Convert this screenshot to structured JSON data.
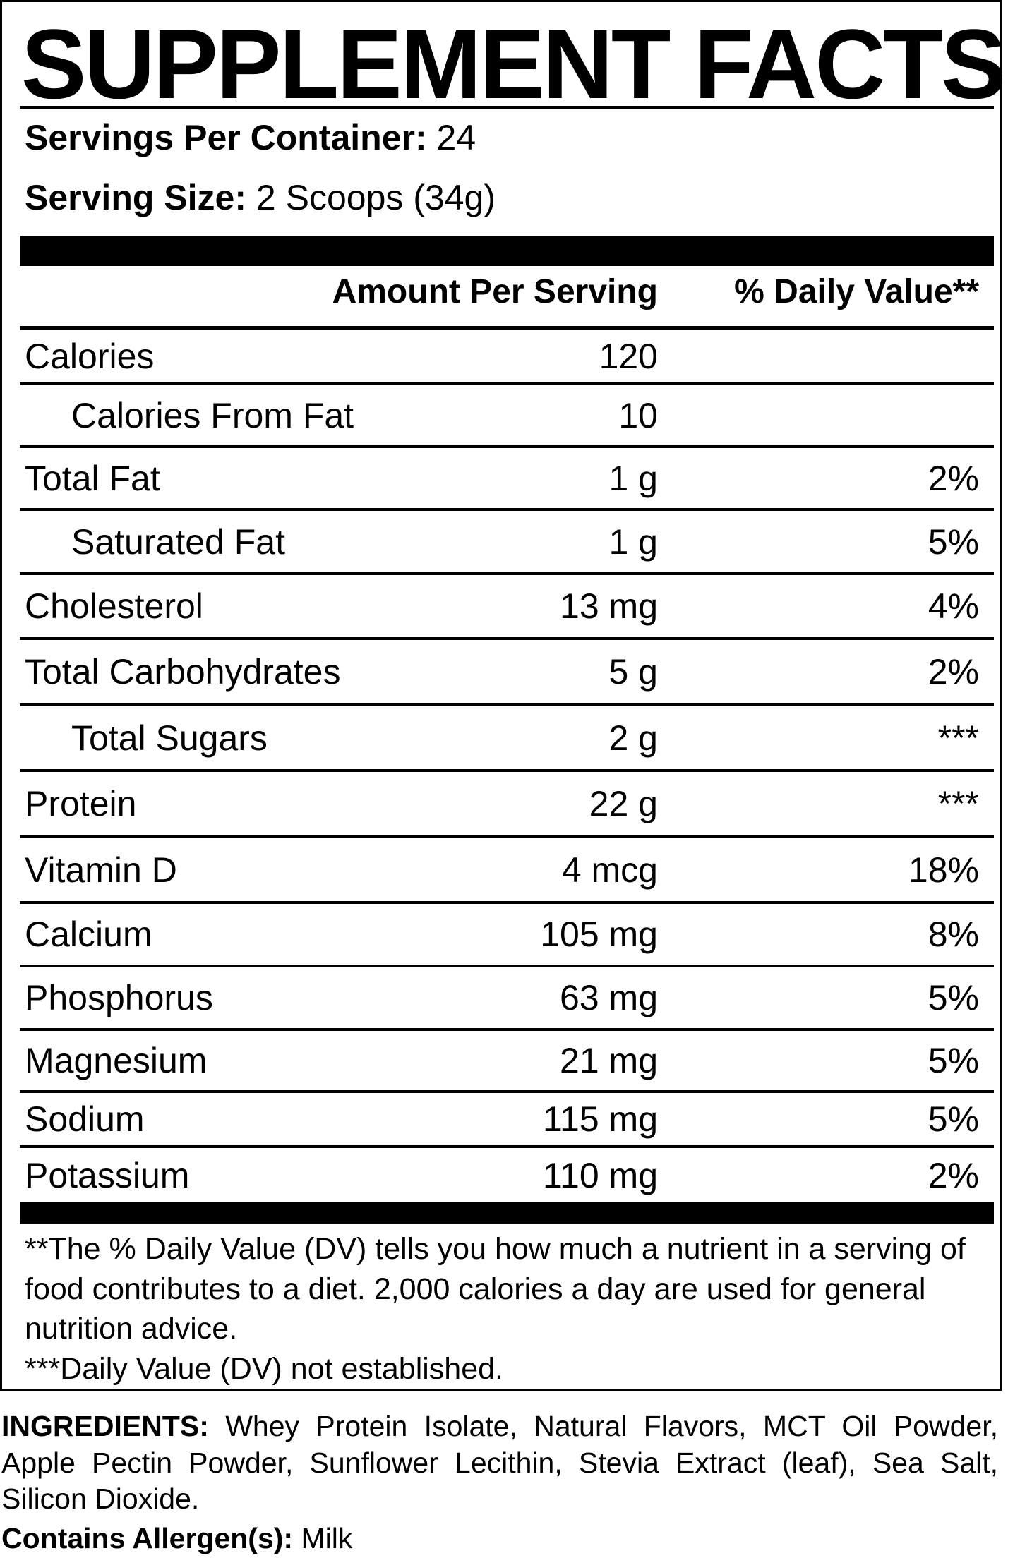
{
  "title": "SUPPLEMENT FACTS",
  "servings_per_container": {
    "label": "Servings Per Container:",
    "value": "24"
  },
  "serving_size": {
    "label": "Serving Size:",
    "value": "2 Scoops (34g)"
  },
  "columns": {
    "amount": "Amount Per Serving",
    "daily_value": "% Daily Value**"
  },
  "rows": [
    {
      "name": "Calories",
      "amount": "120",
      "dv": ""
    },
    {
      "name": "Calories From Fat",
      "amount": "10",
      "dv": ""
    },
    {
      "name": "Total Fat",
      "amount": "1 g",
      "dv": "2%"
    },
    {
      "name": "Saturated Fat",
      "amount": "1 g",
      "dv": "5%"
    },
    {
      "name": "Cholesterol",
      "amount": "13 mg",
      "dv": "4%"
    },
    {
      "name": "Total Carbohydrates",
      "amount": "5 g",
      "dv": "2%"
    },
    {
      "name": "Total Sugars",
      "amount": "2 g",
      "dv": "***"
    },
    {
      "name": "Protein",
      "amount": "22 g",
      "dv": "***"
    },
    {
      "name": "Vitamin D",
      "amount": "4 mcg",
      "dv": "18%"
    },
    {
      "name": "Calcium",
      "amount": "105 mg",
      "dv": "8%"
    },
    {
      "name": "Phosphorus",
      "amount": "63 mg",
      "dv": "5%"
    },
    {
      "name": "Magnesium",
      "amount": "21 mg",
      "dv": "5%"
    },
    {
      "name": "Sodium",
      "amount": "115 mg",
      "dv": "5%"
    },
    {
      "name": "Potassium",
      "amount": "110 mg",
      "dv": "2%"
    }
  ],
  "footnotes": {
    "dv_note": "**The % Daily Value (DV) tells you how much a nutrient in a serving of food contributes to a diet. 2,000 calories a day are used for general nutrition advice.",
    "not_established": "***Daily Value (DV) not established."
  },
  "ingredients": {
    "label": "INGREDIENTS:",
    "text": "Whey Protein Isolate, Natural Flavors, MCT Oil Powder, Apple Pectin Powder, Sunflower Lecithin, Stevia Extract (leaf), Sea Salt, Silicon Dioxide."
  },
  "allergens": {
    "label": "Contains Allergen(s):",
    "value": "Milk"
  }
}
